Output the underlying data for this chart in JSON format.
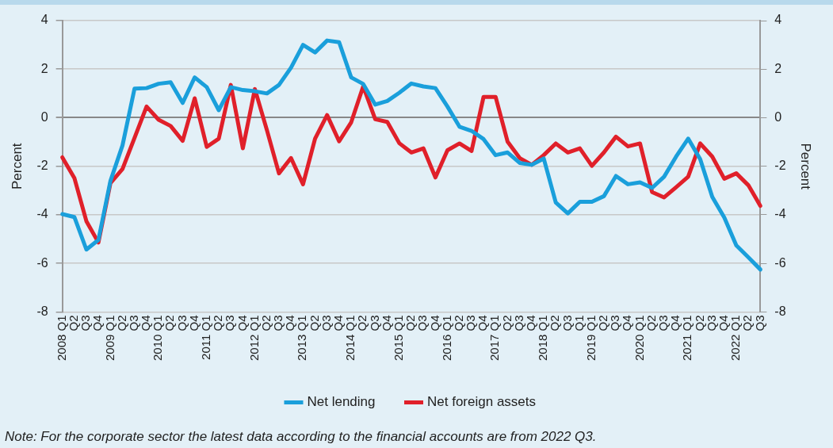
{
  "chart_data": {
    "type": "line",
    "ylabel": "Percent",
    "y2label": "Percent",
    "categories": [
      "2008 Q1",
      "Q2",
      "Q3",
      "Q4",
      "2009 Q1",
      "Q2",
      "Q3",
      "Q4",
      "2010 Q1",
      "Q2",
      "Q3",
      "Q4",
      "2011 Q1",
      "Q2",
      "Q3",
      "Q4",
      "2012 Q1",
      "Q2",
      "Q3",
      "Q4",
      "2013 Q1",
      "Q2",
      "Q3",
      "Q4",
      "2014 Q1",
      "Q2",
      "Q3",
      "Q4",
      "2015 Q1",
      "Q2",
      "Q3",
      "Q4",
      "2016 Q1",
      "Q2",
      "Q3",
      "Q4",
      "2017 Q1",
      "Q2",
      "Q3",
      "Q4",
      "2018 Q1",
      "Q2",
      "Q3",
      "Q1",
      "2019 Q1",
      "Q2",
      "Q3",
      "Q4",
      "2020 Q1",
      "Q2",
      "Q3",
      "Q4",
      "2021 Q1",
      "Q2",
      "Q3",
      "Q4",
      "2022 Q1",
      "Q2",
      "Q3"
    ],
    "series": [
      {
        "name": "Net lending",
        "color": "#1a9fdb",
        "values": [
          -3.97,
          -4.09,
          -5.43,
          -5.03,
          -2.6,
          -1.14,
          1.2,
          1.22,
          1.4,
          1.46,
          0.61,
          1.66,
          1.26,
          0.31,
          1.26,
          1.14,
          1.09,
          1.0,
          1.35,
          2.06,
          3.0,
          2.69,
          3.18,
          3.11,
          1.66,
          1.39,
          0.54,
          0.69,
          1.03,
          1.41,
          1.29,
          1.22,
          0.46,
          -0.37,
          -0.54,
          -0.88,
          -1.54,
          -1.43,
          -1.86,
          -1.94,
          -1.68,
          -3.49,
          -3.94,
          -3.46,
          -3.46,
          -3.23,
          -2.4,
          -2.74,
          -2.66,
          -2.89,
          -2.43,
          -1.6,
          -0.86,
          -1.71,
          -3.26,
          -4.11,
          -5.26,
          -5.75,
          -6.25
        ]
      },
      {
        "name": "Net foreign assets",
        "color": "#e0202a",
        "values": [
          -1.63,
          -2.48,
          -4.26,
          -5.14,
          -2.69,
          -2.11,
          -0.83,
          0.46,
          -0.08,
          -0.34,
          -0.95,
          0.8,
          -1.2,
          -0.86,
          1.35,
          -1.26,
          1.18,
          -0.51,
          -2.29,
          -1.66,
          -2.74,
          -0.86,
          0.11,
          -0.97,
          -0.19,
          1.29,
          -0.06,
          -0.17,
          -1.05,
          -1.43,
          -1.26,
          -2.46,
          -1.34,
          -1.06,
          -1.37,
          0.86,
          0.86,
          -0.99,
          -1.66,
          -1.94,
          -1.54,
          -1.06,
          -1.43,
          -1.26,
          -1.98,
          -1.43,
          -0.78,
          -1.18,
          -1.06,
          -3.06,
          -3.28,
          -2.86,
          -2.43,
          -1.06,
          -1.6,
          -2.51,
          -2.29,
          -2.78,
          -3.63
        ]
      }
    ],
    "ylim": [
      -8,
      4
    ],
    "yticks": [
      -8,
      -6,
      -4,
      -2,
      0,
      2,
      4
    ],
    "y2lim": [
      -8,
      4
    ],
    "y2ticks": [
      -8,
      -6,
      -4,
      -2,
      0,
      2,
      4
    ],
    "grid": "y",
    "legend": "bottom",
    "marker": "none",
    "line_style": "solid",
    "annotations": [
      "Note: For the corporate sector the latest data according to the financial accounts are from 2022 Q3."
    ]
  }
}
